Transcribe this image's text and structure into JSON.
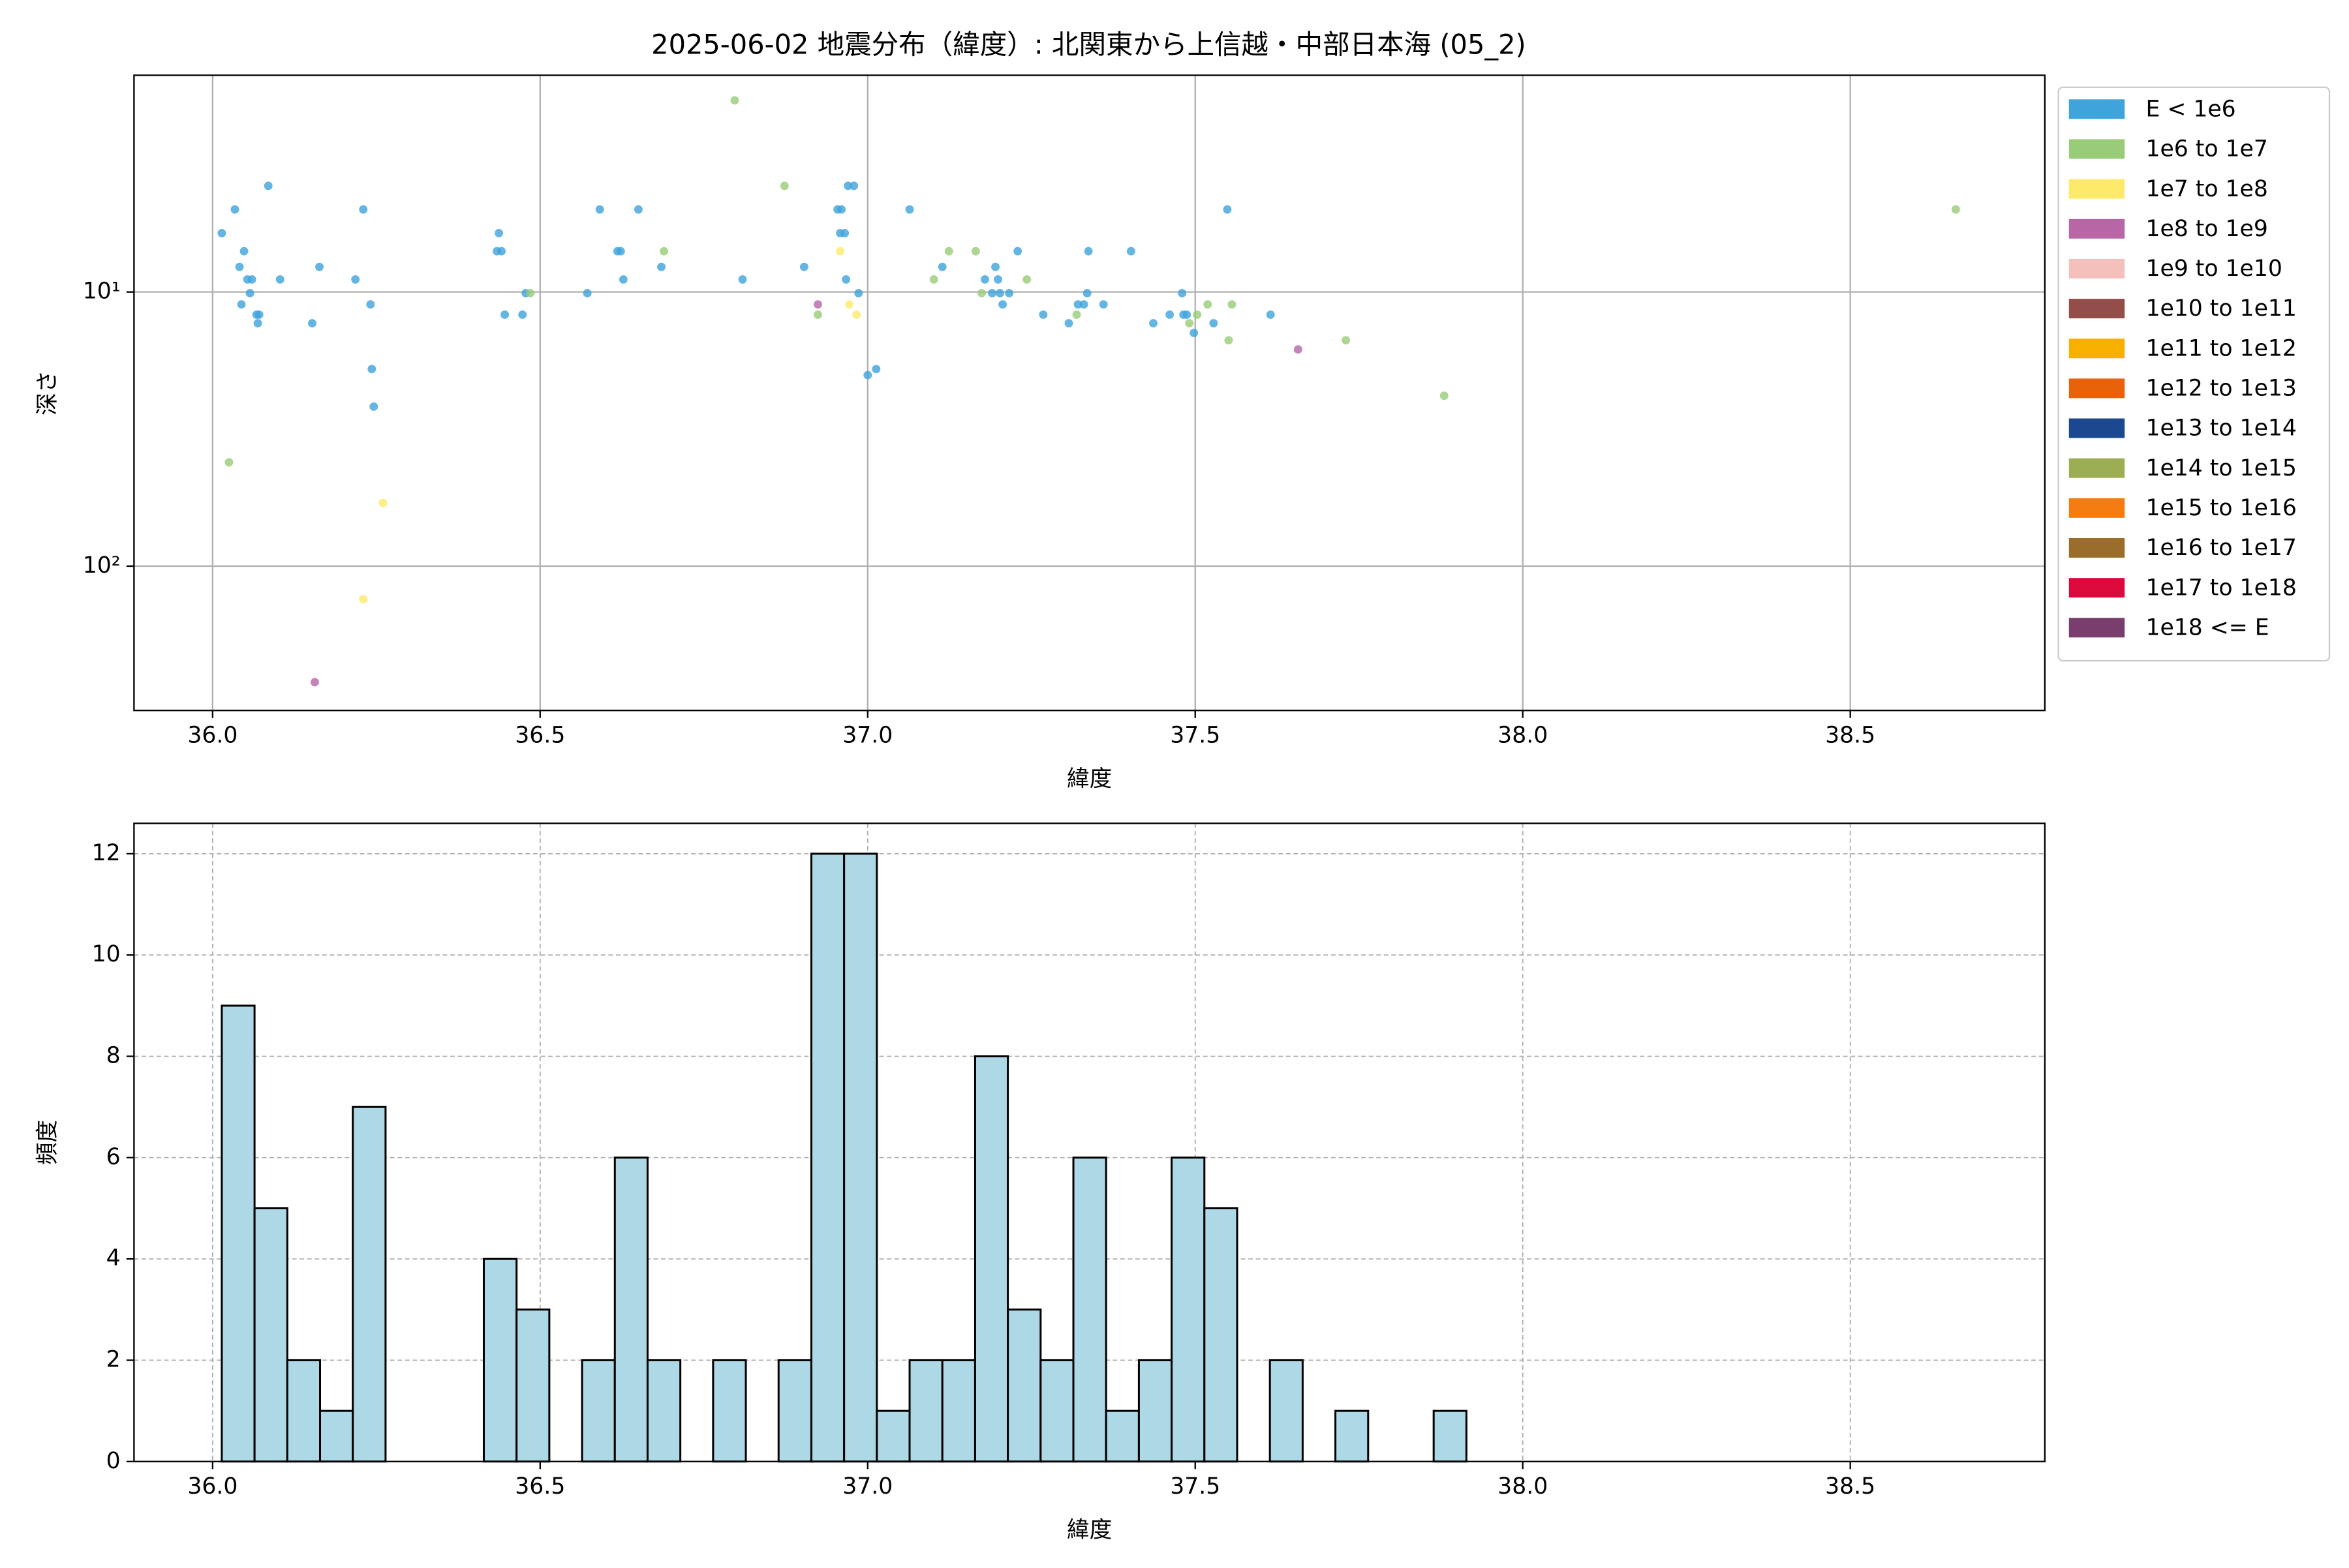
{
  "chart_data": [
    {
      "type": "scatter",
      "title": "2025-06-02 地震分布（緯度）: 北関東から上信越・中部日本海 (05_2)",
      "xlabel": "緯度",
      "ylabel": "深さ",
      "xlim": [
        35.88,
        38.797
      ],
      "xticks": [
        {
          "value": 36,
          "label": "36.0"
        },
        {
          "value": 36.5,
          "label": "36.5"
        },
        {
          "value": 37,
          "label": "37.0"
        },
        {
          "value": 37.5,
          "label": "37.5"
        },
        {
          "value": 38,
          "label": "38.0"
        },
        {
          "value": 38.5,
          "label": "38.5"
        }
      ],
      "ylim": [
        1.62,
        336
      ],
      "ylog": true,
      "yinvert": true,
      "yticks": [
        {
          "value": 10,
          "label": "10¹"
        },
        {
          "value": 100,
          "label": "10²"
        }
      ],
      "grid": true,
      "legend": "outside right",
      "series": [
        {
          "name": "E < 1e6",
          "color": "#3fa3dc",
          "x": [
            36.014,
            36.034,
            36.041,
            36.048,
            36.053,
            36.057,
            36.06,
            36.044,
            36.067,
            36.071,
            36.069,
            36.085,
            36.103,
            36.152,
            36.163,
            36.218,
            36.23,
            36.241,
            36.243,
            36.246,
            36.437,
            36.434,
            36.441,
            36.446,
            36.473,
            36.478,
            36.572,
            36.591,
            36.618,
            36.623,
            36.627,
            36.65,
            36.685,
            36.809,
            36.903,
            36.954,
            36.96,
            36.958,
            36.965,
            36.97,
            36.979,
            36.967,
            36.986,
            37.0,
            37.013,
            37.064,
            37.114,
            37.179,
            37.19,
            37.195,
            37.199,
            37.202,
            37.206,
            37.216,
            37.229,
            37.268,
            37.307,
            37.321,
            37.33,
            37.335,
            37.337,
            37.36,
            37.402,
            37.436,
            37.461,
            37.48,
            37.482,
            37.487,
            37.498,
            37.528,
            37.549,
            37.615
          ],
          "values": [
            6.1,
            5.0,
            8.1,
            7.1,
            9.0,
            10.1,
            9.0,
            11.1,
            12.1,
            12.1,
            13.0,
            4.1,
            9.0,
            13.0,
            8.1,
            9.0,
            5.0,
            11.1,
            19.1,
            26.2,
            6.1,
            7.1,
            7.1,
            12.1,
            12.1,
            10.1,
            10.1,
            5.0,
            7.1,
            7.1,
            9.0,
            5.0,
            8.1,
            9.0,
            8.1,
            5.0,
            5.0,
            6.1,
            6.1,
            4.1,
            4.1,
            9.0,
            10.1,
            20.1,
            19.1,
            5.0,
            8.1,
            9.0,
            10.1,
            8.1,
            9.0,
            10.1,
            11.1,
            10.1,
            7.1,
            12.1,
            13.0,
            11.1,
            11.1,
            10.1,
            7.1,
            11.1,
            7.1,
            13.0,
            12.1,
            10.1,
            12.1,
            12.1,
            14.1,
            13.0,
            5.0,
            12.1
          ]
        },
        {
          "name": "1e6 to 1e7",
          "color": "#98cc78",
          "x": [
            36.025,
            36.689,
            36.485,
            36.797,
            36.873,
            36.924,
            37.101,
            37.124,
            37.165,
            37.174,
            37.243,
            37.319,
            37.491,
            37.503,
            37.519,
            37.551,
            37.556,
            37.73,
            37.88,
            38.661
          ],
          "values": [
            41.8,
            7.1,
            10.1,
            2.0,
            4.1,
            12.1,
            9.0,
            7.1,
            7.1,
            10.1,
            9.0,
            12.1,
            13.0,
            12.1,
            11.1,
            15.0,
            11.1,
            15.0,
            23.9,
            5.0
          ]
        },
        {
          "name": "1e7 to 1e8",
          "color": "#fdea6a",
          "x": [
            36.26,
            36.23,
            36.958,
            36.972,
            36.983
          ],
          "values": [
            58.8,
            132,
            7.1,
            11.1,
            12.1
          ]
        },
        {
          "name": "1e8 to 1e9",
          "color": "#b866a6",
          "x": [
            36.156,
            36.924,
            37.657
          ],
          "values": [
            265,
            11.1,
            16.2
          ]
        },
        {
          "name": "1e9 to 1e10",
          "color": "#f4c0bc",
          "x": [],
          "values": []
        },
        {
          "name": "1e10 to 1e11",
          "color": "#944e4a",
          "x": [],
          "values": []
        },
        {
          "name": "1e11 to 1e12",
          "color": "#f8b000",
          "x": [],
          "values": []
        },
        {
          "name": "1e12 to 1e13",
          "color": "#e8620a",
          "x": [],
          "values": []
        },
        {
          "name": "1e13 to 1e14",
          "color": "#1c4890",
          "x": [],
          "values": []
        },
        {
          "name": "1e14 to 1e15",
          "color": "#9cae54",
          "x": [],
          "values": []
        },
        {
          "name": "1e15 to 1e16",
          "color": "#f47c10",
          "x": [],
          "values": []
        },
        {
          "name": "1e16 to 1e17",
          "color": "#9a6e2a",
          "x": [],
          "values": []
        },
        {
          "name": "1e17 to 1e18",
          "color": "#dc0a3c",
          "x": [],
          "values": []
        },
        {
          "name": "1e18 <= E",
          "color": "#7a3e6e",
          "x": [],
          "values": []
        }
      ]
    },
    {
      "type": "histogram",
      "xlabel": "緯度",
      "ylabel": "頻度",
      "color": "#add8e6",
      "edgecolor": "#000000",
      "grid": true,
      "xlim": [
        35.88,
        38.797
      ],
      "xticks": [
        {
          "value": 36,
          "label": "36.0"
        },
        {
          "value": 36.5,
          "label": "36.5"
        },
        {
          "value": 37,
          "label": "37.0"
        },
        {
          "value": 37.5,
          "label": "37.5"
        },
        {
          "value": 38,
          "label": "38.0"
        },
        {
          "value": 38.5,
          "label": "38.5"
        }
      ],
      "ylim": [
        0,
        12.6
      ],
      "yticks": [
        0,
        2,
        4,
        6,
        8,
        10,
        12
      ],
      "bins": [
        36.014,
        36.064,
        36.114,
        36.164,
        36.214,
        36.264,
        36.314,
        36.364,
        36.414,
        36.464,
        36.514,
        36.564,
        36.614,
        36.664,
        36.714,
        36.764,
        36.814,
        36.864,
        36.914,
        36.964,
        37.014,
        37.064,
        37.114,
        37.164,
        37.214,
        37.264,
        37.314,
        37.364,
        37.414,
        37.464,
        37.514,
        37.564,
        37.614,
        37.664,
        37.714,
        37.764,
        37.814,
        37.864,
        37.914,
        37.964,
        38.014,
        38.064,
        38.114,
        38.164,
        38.214,
        38.264,
        38.314,
        38.364,
        38.414,
        38.464,
        38.514,
        38.564,
        38.614,
        38.664
      ],
      "values": [
        9,
        5,
        2,
        1,
        7,
        0,
        0,
        0,
        4,
        3,
        0,
        2,
        6,
        2,
        0,
        2,
        0,
        2,
        12,
        12,
        1,
        2,
        2,
        8,
        3,
        2,
        6,
        1,
        2,
        6,
        5,
        0,
        2,
        0,
        1,
        0,
        0,
        1,
        0,
        0,
        0,
        0,
        0,
        0,
        0,
        0,
        0,
        0,
        0,
        0,
        0,
        0,
        0
      ]
    }
  ]
}
